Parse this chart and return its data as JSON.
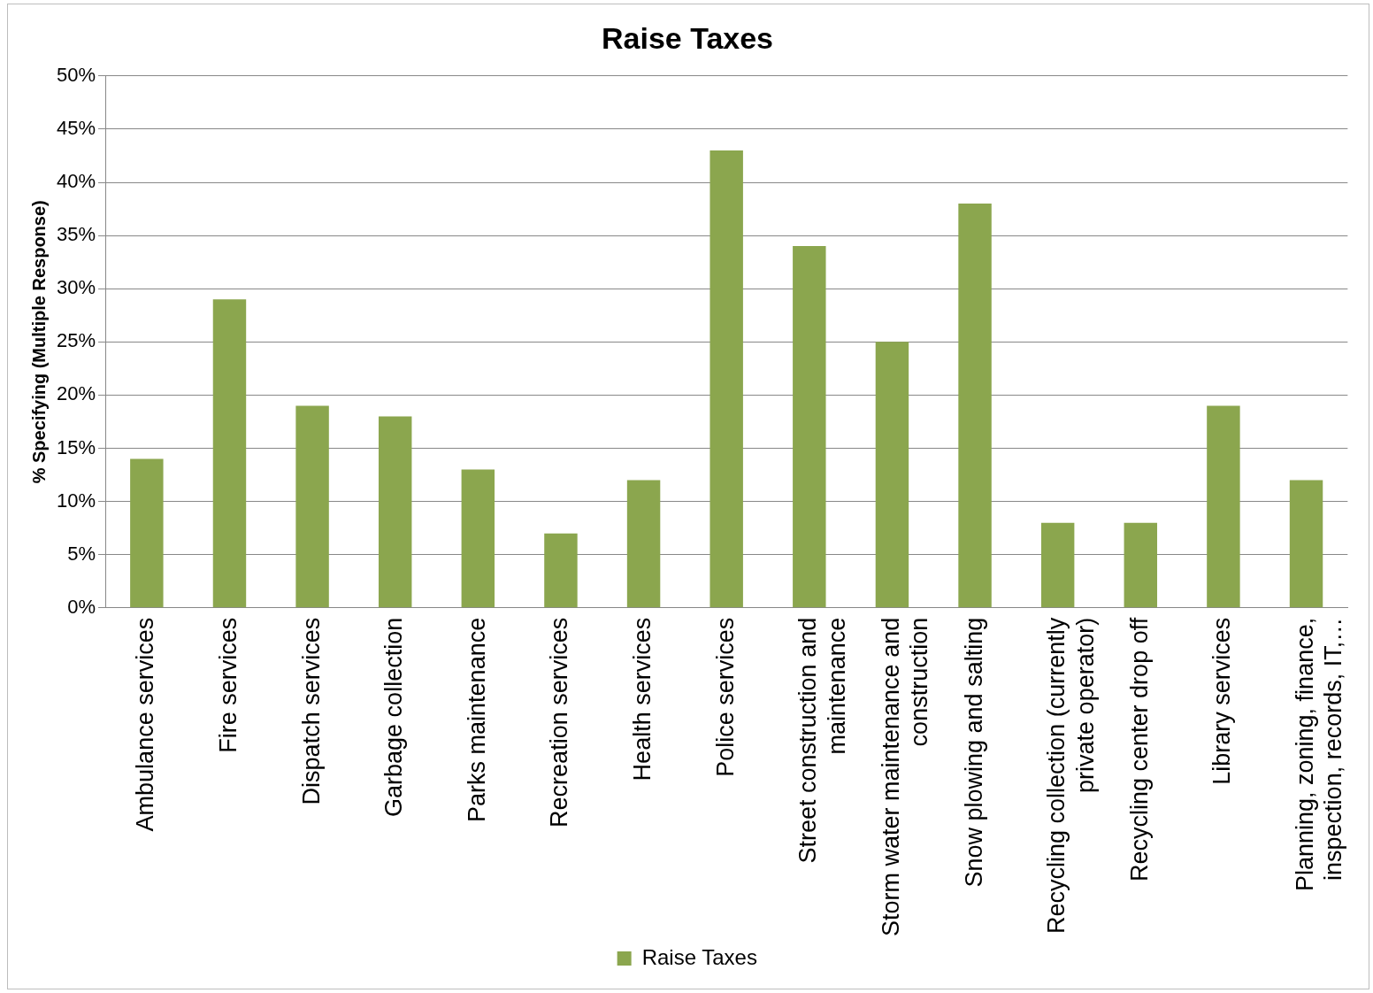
{
  "chart_data": {
    "type": "bar",
    "title": "Raise Taxes",
    "ylabel": "% Specifying (Multiple Response)",
    "categories": [
      "Ambulance services",
      "Fire services",
      "Dispatch services",
      "Garbage collection",
      "Parks maintenance",
      "Recreation services",
      "Health services",
      "Police services",
      "Street construction and maintenance",
      "Storm water maintenance and construction",
      "Snow plowing and salting",
      "Recycling collection (currently private operator)",
      "Recycling center drop off",
      "Library services",
      "Planning, zoning, finance, inspection, records, IT,…"
    ],
    "series": [
      {
        "name": "Raise Taxes",
        "color": "#8ba64e",
        "values": [
          14,
          29,
          19,
          18,
          13,
          7,
          12,
          43,
          34,
          25,
          38,
          8,
          8,
          19,
          12
        ]
      }
    ],
    "ylim": [
      0,
      50
    ],
    "yticks": [
      {
        "value": 0,
        "label": "0%"
      },
      {
        "value": 5,
        "label": "5%"
      },
      {
        "value": 10,
        "label": "10%"
      },
      {
        "value": 15,
        "label": "15%"
      },
      {
        "value": 20,
        "label": "20%"
      },
      {
        "value": 25,
        "label": "25%"
      },
      {
        "value": 30,
        "label": "30%"
      },
      {
        "value": 35,
        "label": "35%"
      },
      {
        "value": 40,
        "label": "40%"
      },
      {
        "value": 45,
        "label": "45%"
      },
      {
        "value": 50,
        "label": "50%"
      }
    ],
    "grid": "y",
    "legend": "bottom"
  }
}
